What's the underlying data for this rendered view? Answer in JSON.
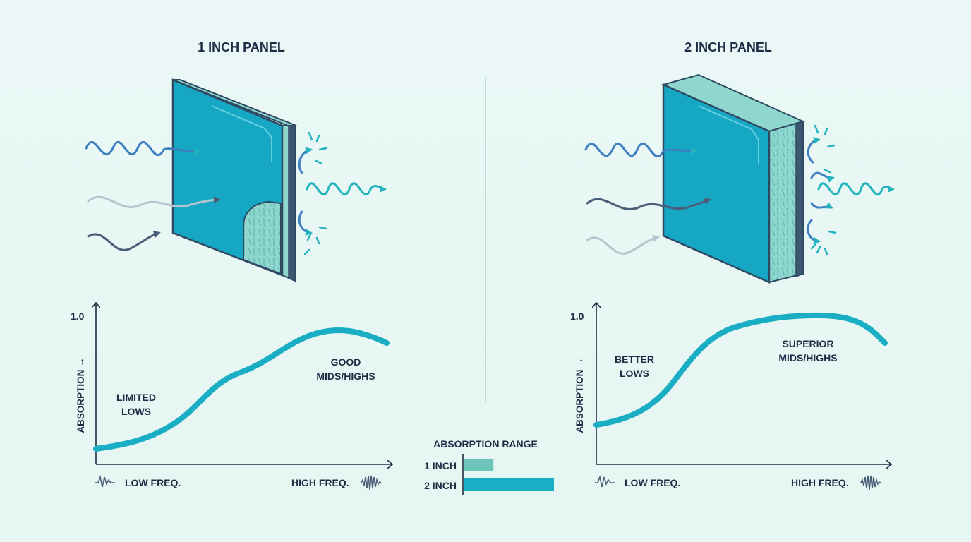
{
  "left_panel": {
    "title": "1 INCH PANEL",
    "graph": {
      "y_max_label": "1.0",
      "y_axis_label": "ABSORPTION →",
      "note_low": [
        "LIMITED",
        "LOWS"
      ],
      "note_high": [
        "GOOD",
        "MIDS/HIGHS"
      ],
      "x_low_label": "LOW FREQ.",
      "x_high_label": "HIGH FREQ."
    }
  },
  "right_panel": {
    "title": "2 INCH PANEL",
    "graph": {
      "y_max_label": "1.0",
      "y_axis_label": "ABSORPTION →",
      "note_low": [
        "BETTER",
        "LOWS"
      ],
      "note_high": [
        "SUPERIOR",
        "MIDS/HIGHS"
      ],
      "x_low_label": "LOW FREQ.",
      "x_high_label": "HIGH FREQ."
    }
  },
  "range_legend": {
    "title": "ABSORPTION RANGE",
    "rows": [
      {
        "label": "1 INCH",
        "fraction": 0.33,
        "color": "#6cc4bb"
      },
      {
        "label": "2 INCH",
        "fraction": 1.0,
        "color": "#19aec4"
      }
    ]
  },
  "colors": {
    "panel_face": "#16a7c4",
    "accent": "#19aec4",
    "outline": "#2e4a63",
    "wave_blue": "#3d7fc0",
    "wave_teal": "#22b3bd",
    "wave_gray": "#b6c4ce",
    "wave_dark": "#4a5f77"
  }
}
